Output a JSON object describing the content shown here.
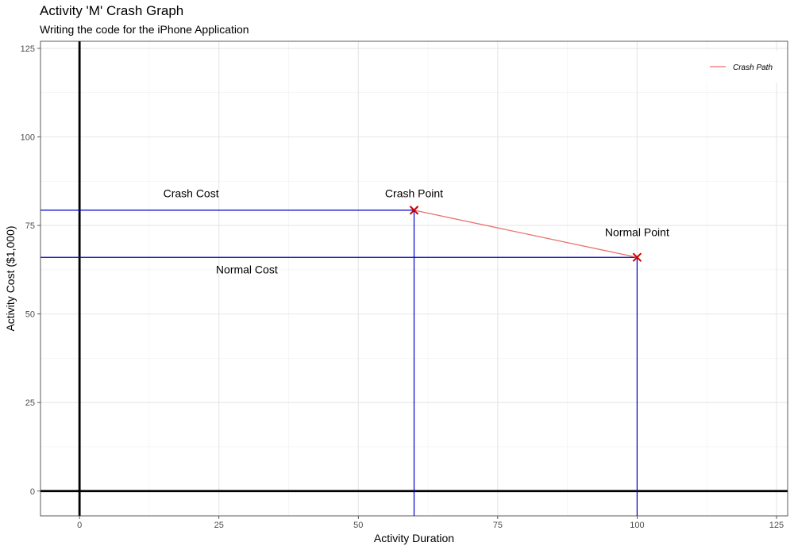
{
  "chart_data": {
    "type": "line",
    "title": "Activity 'M' Crash Graph",
    "subtitle": "Writing the code for the iPhone Application",
    "xlabel": "Activity Duration",
    "ylabel": "Activity Cost ($1,000)",
    "xlim": [
      -7,
      127
    ],
    "ylim": [
      -7,
      127
    ],
    "x_ticks": [
      0,
      25,
      50,
      75,
      100,
      125
    ],
    "y_ticks": [
      0,
      25,
      50,
      75,
      100,
      125
    ],
    "grid": true,
    "legend": {
      "position": "top-right",
      "entries": [
        "Crash Path"
      ]
    },
    "series": [
      {
        "name": "Crash Path",
        "x": [
          60,
          100
        ],
        "y": [
          79.3,
          66
        ],
        "color": "#e8726d"
      }
    ],
    "points": [
      {
        "x": 60,
        "y": 79.3,
        "marker": "x",
        "color": "#cc0000"
      },
      {
        "x": 100,
        "y": 66,
        "marker": "x",
        "color": "#cc0000"
      }
    ],
    "reference_lines": {
      "horizontal": [
        {
          "y": 79.3,
          "x_from": -7,
          "x_to": 60,
          "color": "#0000cc"
        },
        {
          "y": 66,
          "x_from": -7,
          "x_to": 100,
          "color": "#0000cc"
        }
      ],
      "vertical": [
        {
          "x": 60,
          "y_from": -7,
          "y_to": 79.3,
          "color": "#0000cc"
        },
        {
          "x": 100,
          "y_from": -7,
          "y_to": 66,
          "color": "#0000cc"
        }
      ],
      "axes": [
        {
          "orientation": "vertical",
          "value": 0,
          "color": "#000000"
        },
        {
          "orientation": "horizontal",
          "value": 0,
          "color": "#000000"
        }
      ]
    },
    "annotations": [
      {
        "text": "Crash Cost",
        "x": 20,
        "y": 83
      },
      {
        "text": "Crash Point",
        "x": 60,
        "y": 83
      },
      {
        "text": "Normal Point",
        "x": 100,
        "y": 72
      },
      {
        "text": "Normal Cost",
        "x": 30,
        "y": 61.5
      }
    ]
  }
}
